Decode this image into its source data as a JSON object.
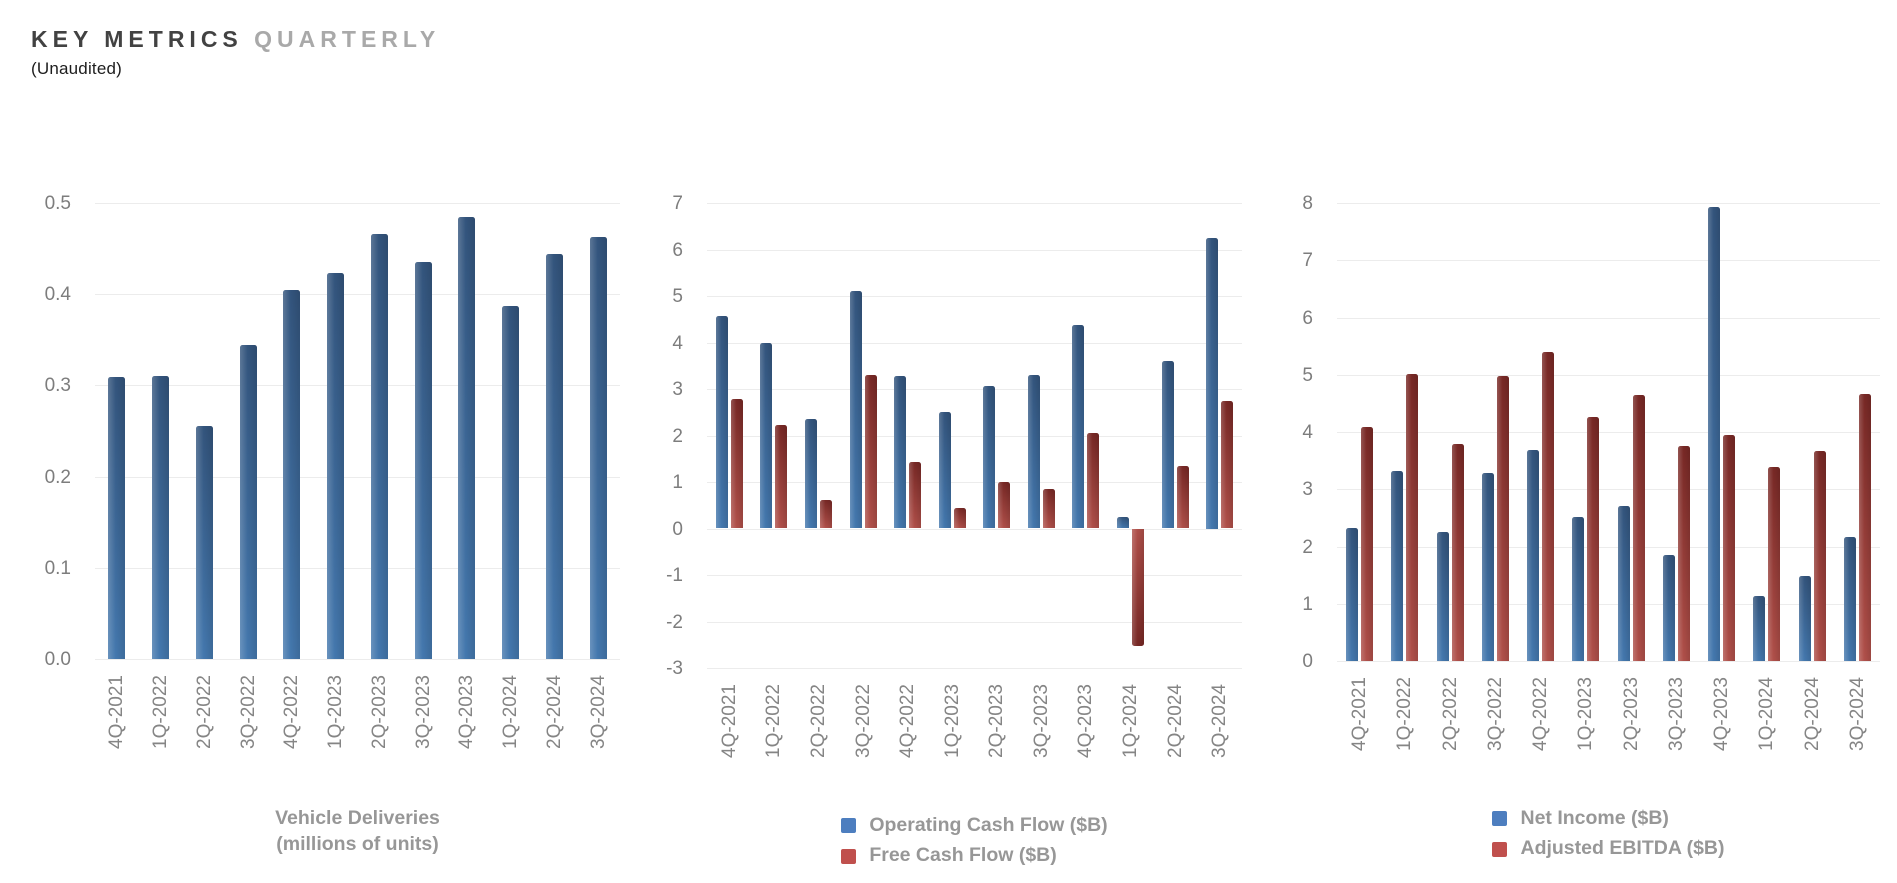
{
  "header": {
    "title_primary": "KEY METRICS",
    "title_secondary": "QUARTERLY",
    "subtitle": "(Unaudited)"
  },
  "colors": {
    "bar_blue_top": "#33547c",
    "bar_blue_bottom": "#4478ae",
    "bar_red_top": "#772825",
    "bar_red_bottom": "#b0504a",
    "legend_blue": "#4d7ebf",
    "legend_red": "#c0504d",
    "gridline": "#ececec",
    "axis_text": "#7d7d7d"
  },
  "categories": [
    "4Q-2021",
    "1Q-2022",
    "2Q-2022",
    "3Q-2022",
    "4Q-2022",
    "1Q-2023",
    "2Q-2023",
    "3Q-2023",
    "4Q-2023",
    "1Q-2024",
    "2Q-2024",
    "3Q-2024"
  ],
  "chart_data": [
    {
      "type": "bar",
      "title": "Vehicle Deliveries (millions of units)",
      "caption_lines": [
        "Vehicle Deliveries",
        "(millions of units)"
      ],
      "categories": [
        "4Q-2021",
        "1Q-2022",
        "2Q-2022",
        "3Q-2022",
        "4Q-2022",
        "1Q-2023",
        "2Q-2023",
        "3Q-2023",
        "4Q-2023",
        "1Q-2024",
        "2Q-2024",
        "3Q-2024"
      ],
      "ylim": [
        0,
        0.5
      ],
      "ytick_labels": [
        "0.5",
        "0.4",
        "0.3",
        "0.2",
        "0.1",
        "0.0"
      ],
      "grid": true,
      "legend_position": "none",
      "series": [
        {
          "name": "Vehicle Deliveries (millions of units)",
          "color": "blue",
          "values": [
            0.309,
            0.31,
            0.255,
            0.344,
            0.405,
            0.423,
            0.466,
            0.435,
            0.485,
            0.387,
            0.444,
            0.463
          ]
        }
      ]
    },
    {
      "type": "bar",
      "title": "Operating Cash Flow vs Free Cash Flow",
      "categories": [
        "4Q-2021",
        "1Q-2022",
        "2Q-2022",
        "3Q-2022",
        "4Q-2022",
        "1Q-2023",
        "2Q-2023",
        "3Q-2023",
        "4Q-2023",
        "1Q-2024",
        "2Q-2024",
        "3Q-2024"
      ],
      "ylim": [
        -3,
        7
      ],
      "ytick_labels": [
        "7",
        "6",
        "5",
        "4",
        "3",
        "2",
        "1",
        "0",
        "-1",
        "-2",
        "-3"
      ],
      "grid": true,
      "legend_position": "bottom",
      "series": [
        {
          "name": "Operating Cash Flow ($B)",
          "color": "blue",
          "values": [
            4.58,
            3.99,
            2.35,
            5.1,
            3.28,
            2.51,
            3.06,
            3.31,
            4.37,
            0.24,
            3.61,
            6.25
          ]
        },
        {
          "name": "Free Cash Flow ($B)",
          "color": "red",
          "values": [
            2.78,
            2.23,
            0.62,
            3.3,
            1.42,
            0.44,
            1.01,
            0.85,
            2.06,
            -2.53,
            1.34,
            2.74
          ]
        }
      ]
    },
    {
      "type": "bar",
      "title": "Net Income vs Adjusted EBITDA",
      "categories": [
        "4Q-2021",
        "1Q-2022",
        "2Q-2022",
        "3Q-2022",
        "4Q-2022",
        "1Q-2023",
        "2Q-2023",
        "3Q-2023",
        "4Q-2023",
        "1Q-2024",
        "2Q-2024",
        "3Q-2024"
      ],
      "ylim": [
        0,
        8
      ],
      "ytick_labels": [
        "8",
        "7",
        "6",
        "5",
        "4",
        "3",
        "2",
        "1",
        "0"
      ],
      "grid": true,
      "legend_position": "bottom",
      "series": [
        {
          "name": "Net Income ($B)",
          "color": "blue",
          "values": [
            2.32,
            3.32,
            2.26,
            3.29,
            3.69,
            2.51,
            2.7,
            1.85,
            7.93,
            1.13,
            1.48,
            2.17
          ]
        },
        {
          "name": "Adjusted EBITDA ($B)",
          "color": "red",
          "values": [
            4.09,
            5.02,
            3.79,
            4.97,
            5.4,
            4.27,
            4.65,
            3.76,
            3.95,
            3.38,
            3.67,
            4.66
          ]
        }
      ]
    }
  ]
}
